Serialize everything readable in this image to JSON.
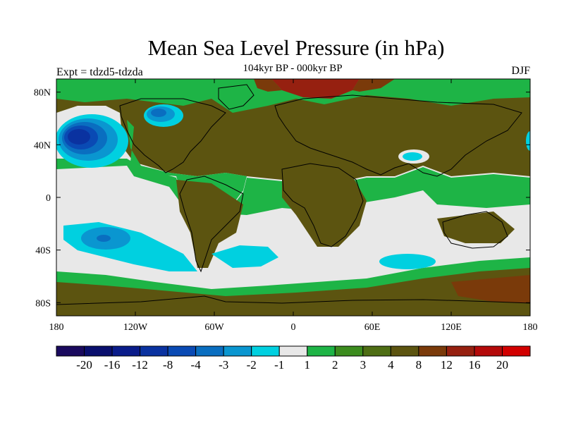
{
  "title": "Mean Sea Level Pressure (in hPa)",
  "subtitle": "104kyr BP - 000kyr BP",
  "left_label": "Expt = tdzd5-tdzda",
  "right_label": "DJF",
  "map": {
    "lon_ticks": [
      {
        "lon": -180,
        "label": "180"
      },
      {
        "lon": -120,
        "label": "120W"
      },
      {
        "lon": -60,
        "label": "60W"
      },
      {
        "lon": 0,
        "label": "0"
      },
      {
        "lon": 60,
        "label": "60E"
      },
      {
        "lon": 120,
        "label": "120E"
      },
      {
        "lon": 180,
        "label": "180"
      }
    ],
    "lat_ticks": [
      {
        "lat": 80,
        "label": "80N"
      },
      {
        "lat": 40,
        "label": "40N"
      },
      {
        "lat": 0,
        "label": "0"
      },
      {
        "lat": -40,
        "label": "40S"
      },
      {
        "lat": -80,
        "label": "80S"
      }
    ],
    "lon_range": [
      -180,
      180
    ],
    "lat_range": [
      -90,
      90
    ]
  },
  "colorbar": {
    "colors": [
      "#1a0a5e",
      "#0a0f6e",
      "#0a1c8a",
      "#0a32a0",
      "#0a4ab4",
      "#0a6ec0",
      "#0a96d0",
      "#00d0e0",
      "#e8e8e8",
      "#1eb446",
      "#3c8c1e",
      "#4e6e14",
      "#5c5410",
      "#7a3a0a",
      "#962010",
      "#b40a0a",
      "#d20000"
    ],
    "labels": [
      "-20",
      "-16",
      "-12",
      "-8",
      "-4",
      "-3",
      "-2",
      "-1",
      "1",
      "2",
      "3",
      "4",
      "8",
      "12",
      "16",
      "20"
    ]
  },
  "colors": {
    "ocean_base": "#e8e8e8",
    "coast": "#000000"
  }
}
